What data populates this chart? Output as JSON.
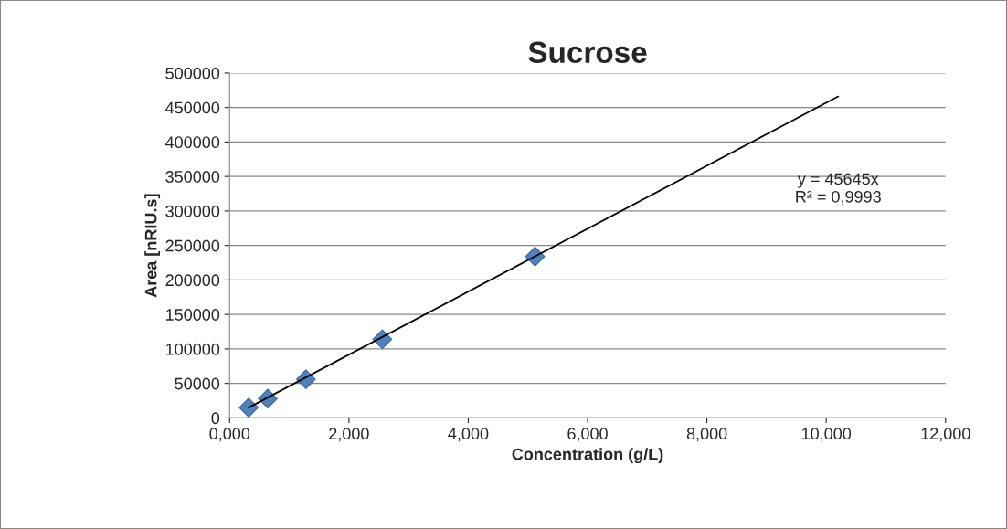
{
  "chart_data": {
    "type": "scatter",
    "title": "Sucrose",
    "xlabel": "Concentration (g/L)",
    "ylabel": "Area [nRIU.s]",
    "series": [
      {
        "color": "#4f81bd",
        "marker": "diamond",
        "x": [
          0.32,
          0.64,
          1.28,
          2.56,
          5.12
        ],
        "values": [
          15000,
          28000,
          56000,
          114000,
          234000
        ]
      },
      {
        "type": "line",
        "color": "#000000",
        "marker": "none",
        "line_style": "solid",
        "x": [
          0.32,
          10.2
        ],
        "values": [
          15000,
          466000
        ]
      }
    ],
    "annotations": [
      "y = 45645x\nR² = 0,9993"
    ],
    "xlim": [
      0,
      12
    ],
    "ylim": [
      0,
      500000
    ],
    "xticks": [
      {
        "value": 0,
        "label": "0,000"
      },
      {
        "value": 2,
        "label": "2,000"
      },
      {
        "value": 4,
        "label": "4,000"
      },
      {
        "value": 6,
        "label": "6,000"
      },
      {
        "value": 8,
        "label": "8,000"
      },
      {
        "value": 10,
        "label": "10,000"
      },
      {
        "value": 12,
        "label": "12,000"
      }
    ],
    "yticks": [
      0,
      50000,
      100000,
      150000,
      200000,
      250000,
      300000,
      350000,
      400000,
      450000,
      500000
    ],
    "grid": "y",
    "legend": false
  }
}
